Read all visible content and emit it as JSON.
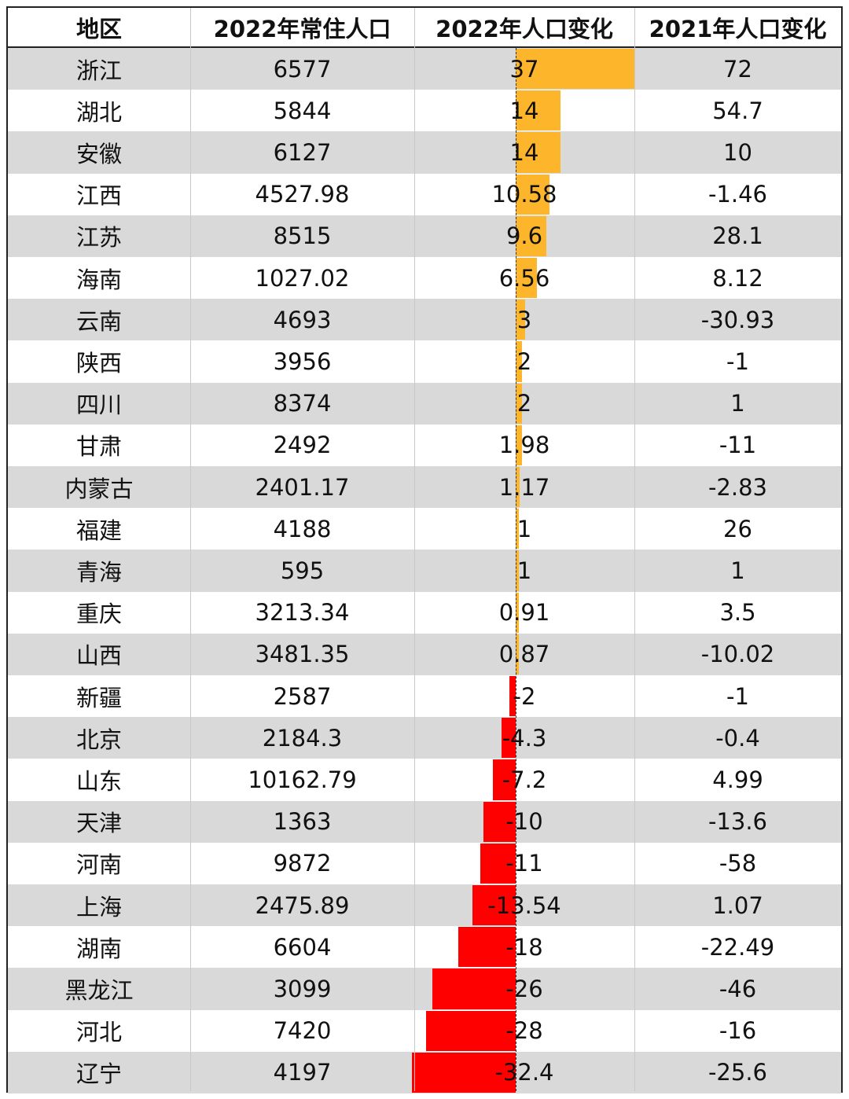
{
  "chart_data": {
    "type": "table",
    "columns": [
      "地区",
      "2022年常住人口",
      "2022年人口变化",
      "2021年人口变化"
    ],
    "rows": [
      [
        "浙江",
        "6577",
        "37",
        "72"
      ],
      [
        "湖北",
        "5844",
        "14",
        "54.7"
      ],
      [
        "安徽",
        "6127",
        "14",
        "10"
      ],
      [
        "江西",
        "4527.98",
        "10.58",
        "-1.46"
      ],
      [
        "江苏",
        "8515",
        "9.6",
        "28.1"
      ],
      [
        "海南",
        "1027.02",
        "6.56",
        "8.12"
      ],
      [
        "云南",
        "4693",
        "3",
        "-30.93"
      ],
      [
        "陕西",
        "3956",
        "2",
        "-1"
      ],
      [
        "四川",
        "8374",
        "2",
        "1"
      ],
      [
        "甘肃",
        "2492",
        "1.98",
        "-11"
      ],
      [
        "内蒙古",
        "2401.17",
        "1.17",
        "-2.83"
      ],
      [
        "福建",
        "4188",
        "1",
        "26"
      ],
      [
        "青海",
        "595",
        "1",
        "1"
      ],
      [
        "重庆",
        "3213.34",
        "0.91",
        "3.5"
      ],
      [
        "山西",
        "3481.35",
        "0.87",
        "-10.02"
      ],
      [
        "新疆",
        "2587",
        "-2",
        "-1"
      ],
      [
        "北京",
        "2184.3",
        "-4.3",
        "-0.4"
      ],
      [
        "山东",
        "10162.79",
        "-7.2",
        "4.99"
      ],
      [
        "天津",
        "1363",
        "-10",
        "-13.6"
      ],
      [
        "河南",
        "9872",
        "-11",
        "-58"
      ],
      [
        "上海",
        "2475.89",
        "-13.54",
        "1.07"
      ],
      [
        "湖南",
        "6604",
        "-18",
        "-22.49"
      ],
      [
        "黑龙江",
        "3099",
        "-26",
        "-46"
      ],
      [
        "河北",
        "7420",
        "-28",
        "-16"
      ],
      [
        "辽宁",
        "4197",
        "-32.4",
        "-25.6"
      ]
    ],
    "databar_column": "2022年人口变化",
    "databar_range": [
      -37,
      37
    ],
    "colors": {
      "positive": "#FDB52B",
      "negative": "#FF0000",
      "shade": "#D9D9D9"
    }
  }
}
